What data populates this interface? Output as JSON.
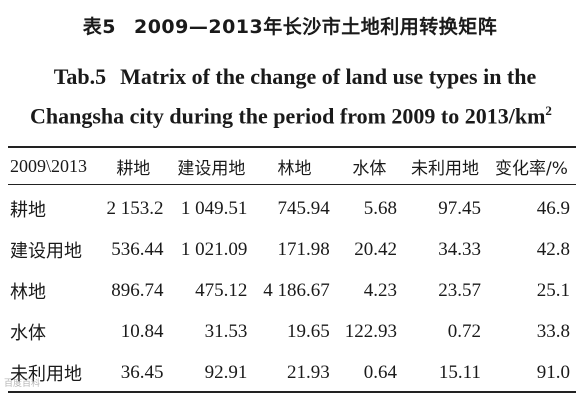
{
  "title": {
    "cn_label": "表5",
    "cn_text": "2009—2013年长沙市土地利用转换矩阵",
    "en_label": "Tab.5",
    "en_line1": "Matrix of the change of land use types in the",
    "en_line2": "Changsha city during the period from 2009 to 2013/km",
    "en_sup": "2"
  },
  "table": {
    "corner": "2009\\2013",
    "columns": [
      "耕地",
      "建设用地",
      "林地",
      "水体",
      "未利用地",
      "变化率/%"
    ],
    "rows": [
      {
        "label": "耕地",
        "values": [
          "2 153.2",
          "1 049.51",
          "745.94",
          "5.68",
          "97.45",
          "46.9"
        ]
      },
      {
        "label": "建设用地",
        "values": [
          "536.44",
          "1 021.09",
          "171.98",
          "20.42",
          "34.33",
          "42.8"
        ]
      },
      {
        "label": "林地",
        "values": [
          "896.74",
          "475.12",
          "4 186.67",
          "4.23",
          "23.57",
          "25.1"
        ]
      },
      {
        "label": "水体",
        "values": [
          "10.84",
          "31.53",
          "19.65",
          "122.93",
          "0.72",
          "33.8"
        ]
      },
      {
        "label": "未利用地",
        "values": [
          "36.45",
          "92.91",
          "21.93",
          "0.64",
          "15.11",
          "91.0"
        ]
      }
    ]
  },
  "watermark": "百度百科"
}
